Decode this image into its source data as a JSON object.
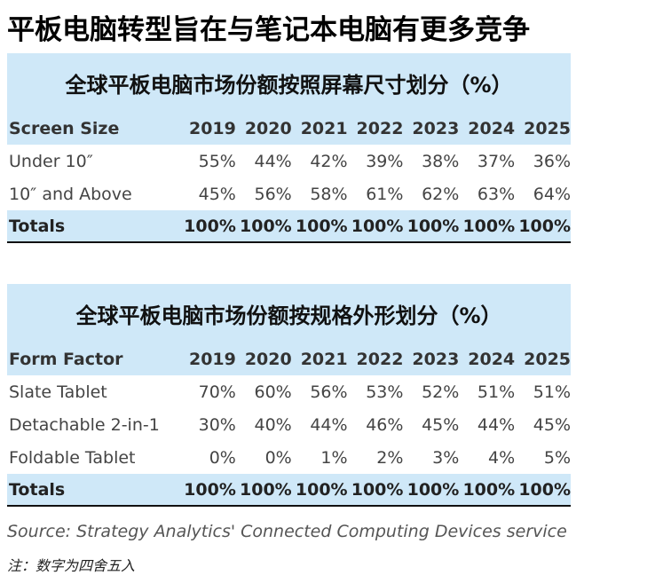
{
  "page_title": "平板电脑转型旨在与笔记本电脑有更多竞争",
  "table1": {
    "title": "全球平板电脑市场份额按照屏幕尺寸划分（%）",
    "header_label": "Screen Size",
    "years": [
      "2019",
      "2020",
      "2021",
      "2022",
      "2023",
      "2024",
      "2025"
    ],
    "rows": [
      {
        "label": "Under 10″",
        "values": [
          "55%",
          "44%",
          "42%",
          "39%",
          "38%",
          "37%",
          "36%"
        ]
      },
      {
        "label": "10″ and Above",
        "values": [
          "45%",
          "56%",
          "58%",
          "61%",
          "62%",
          "63%",
          "64%"
        ]
      }
    ],
    "totals": {
      "label": "Totals",
      "values": [
        "100%",
        "100%",
        "100%",
        "100%",
        "100%",
        "100%",
        "100%"
      ]
    }
  },
  "table2": {
    "title": "全球平板电脑市场份额按规格外形划分（%）",
    "header_label": "Form Factor",
    "years": [
      "2019",
      "2020",
      "2021",
      "2022",
      "2023",
      "2024",
      "2025"
    ],
    "rows": [
      {
        "label": "Slate Tablet",
        "values": [
          "70%",
          "60%",
          "56%",
          "53%",
          "52%",
          "51%",
          "51%"
        ]
      },
      {
        "label": "Detachable 2-in-1",
        "values": [
          "30%",
          "40%",
          "44%",
          "46%",
          "45%",
          "44%",
          "45%"
        ]
      },
      {
        "label": "Foldable Tablet",
        "values": [
          "0%",
          "0%",
          "1%",
          "2%",
          "3%",
          "4%",
          "5%"
        ]
      }
    ],
    "totals": {
      "label": "Totals",
      "values": [
        "100%",
        "100%",
        "100%",
        "100%",
        "100%",
        "100%",
        "100%"
      ]
    }
  },
  "source": "Source: Strategy Analytics' Connected Computing Devices service",
  "note": "注：数字为四舍五入"
}
